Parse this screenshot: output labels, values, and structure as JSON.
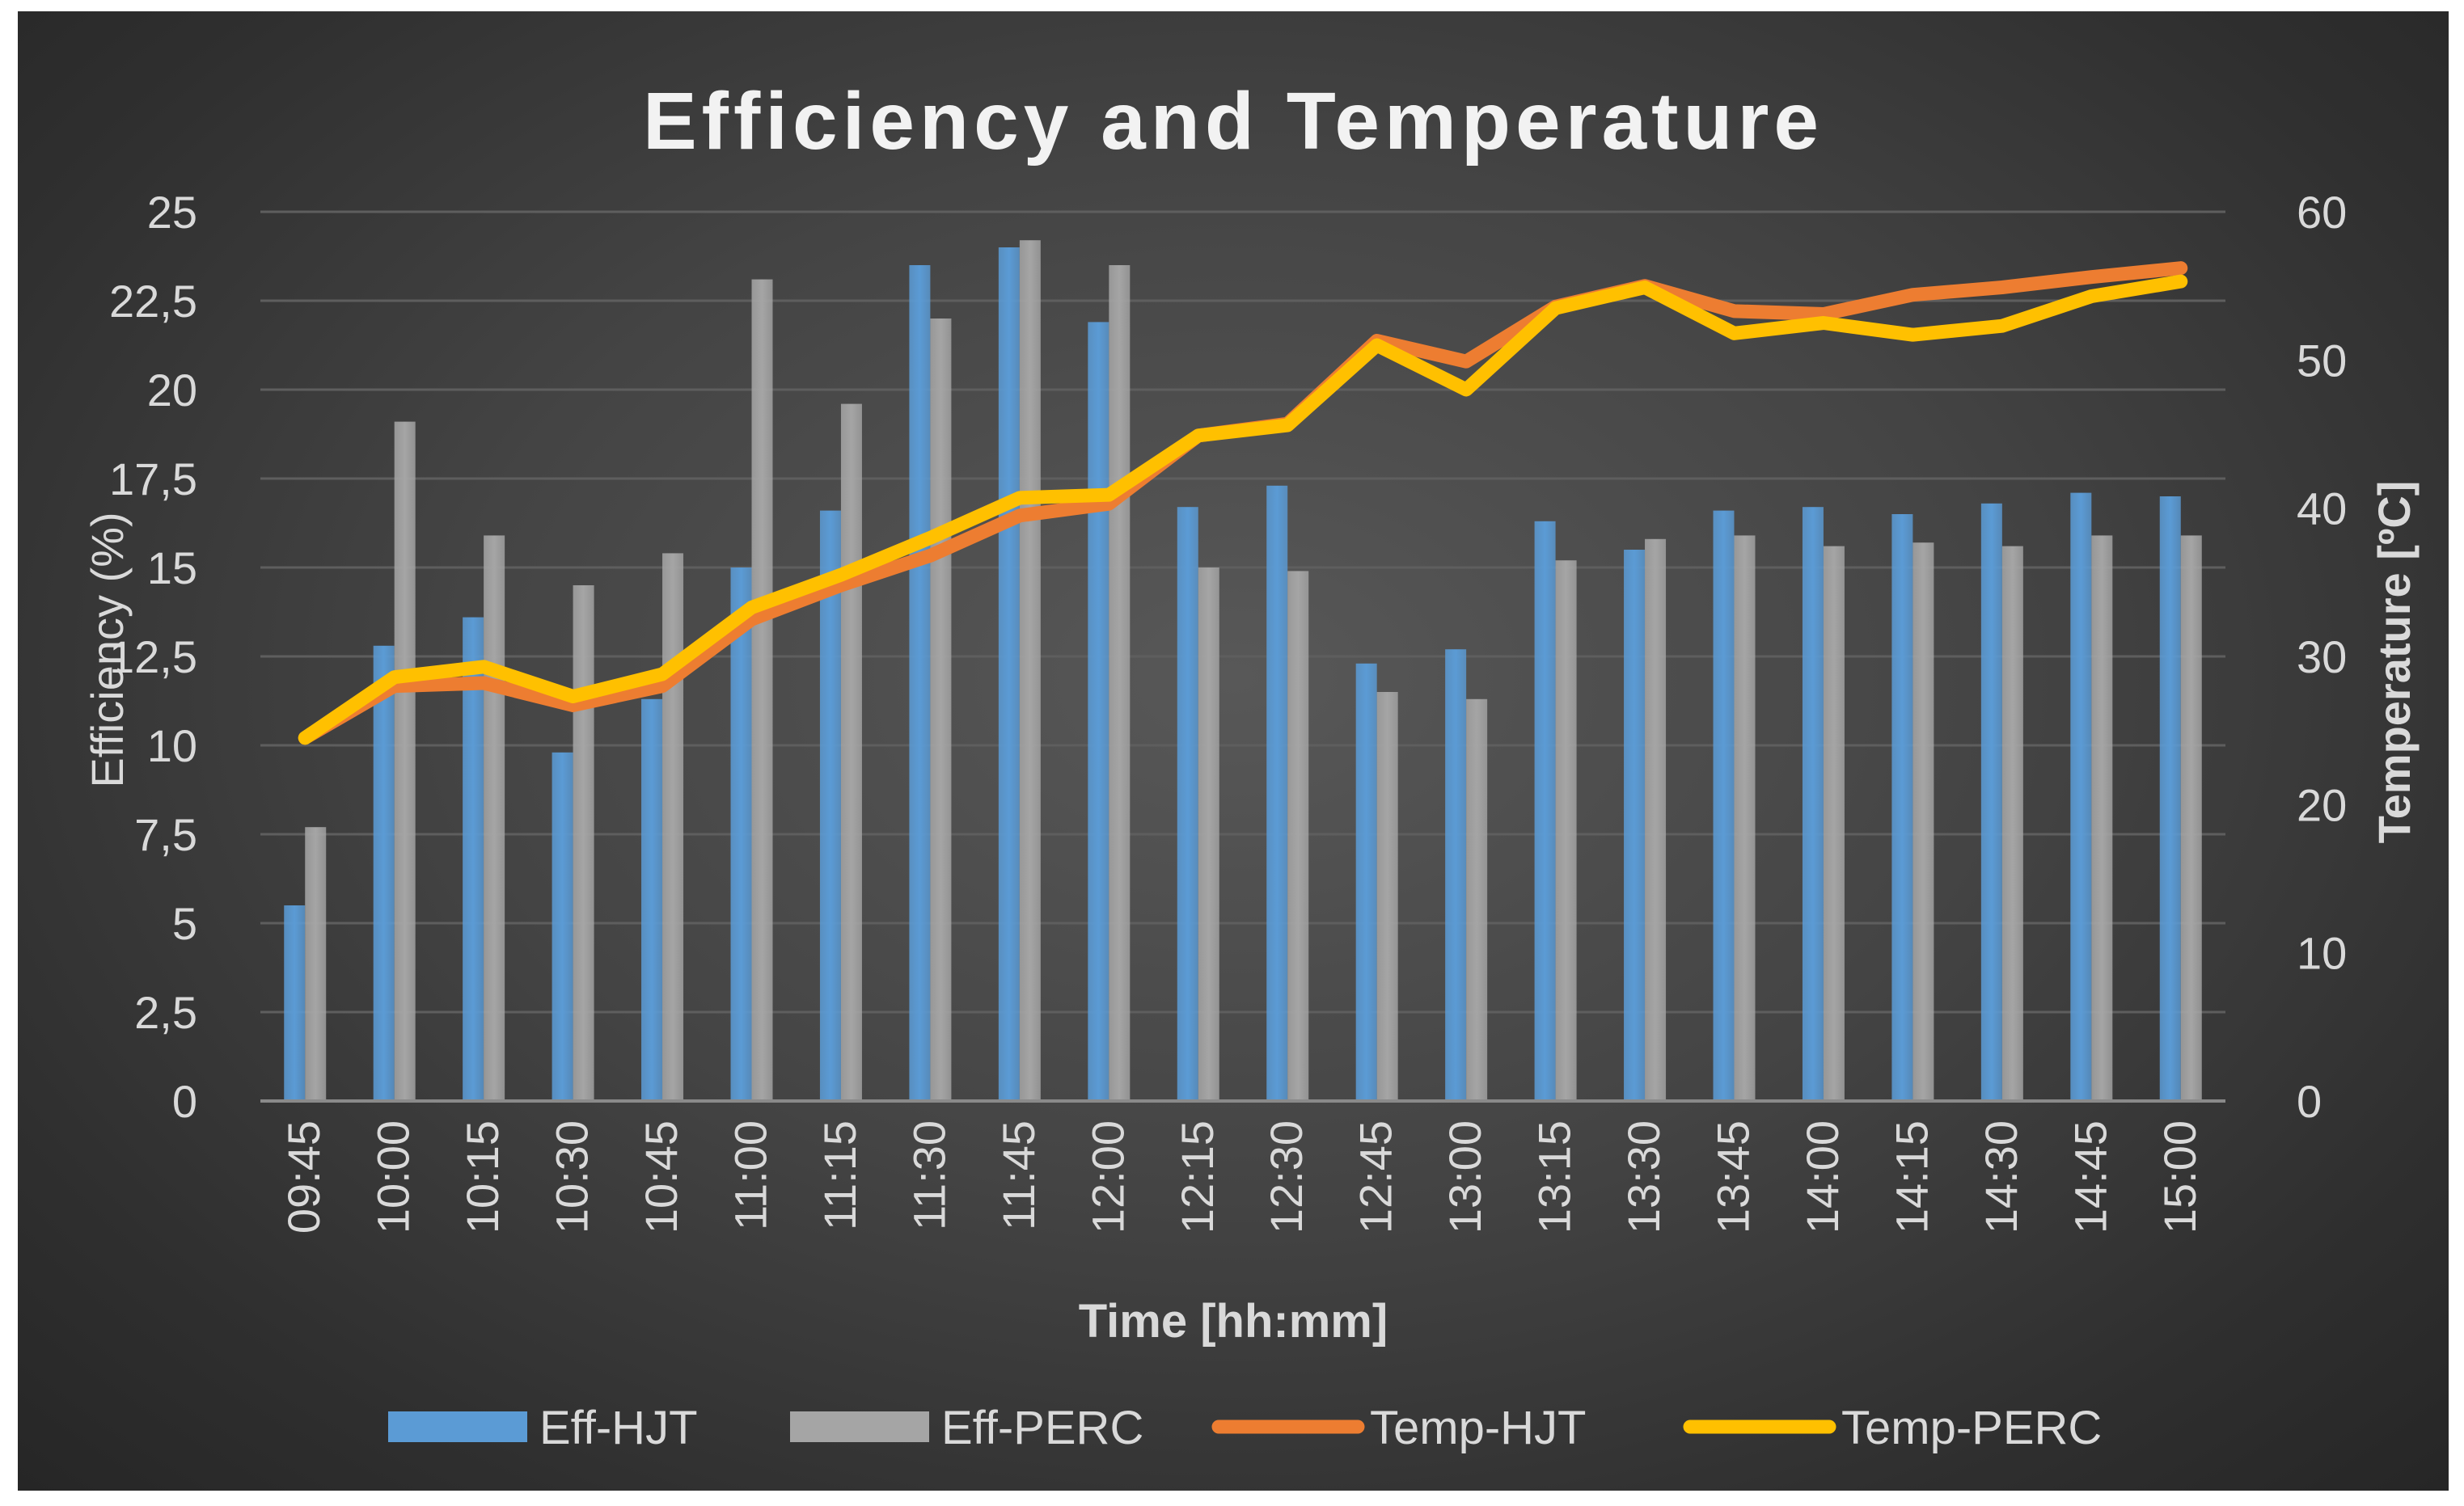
{
  "chart_data": {
    "type": "bar+line",
    "title": "Efficiency and Temperature",
    "xlabel": "Time [hh:mm]",
    "ylabel_left": "Efficiency (%)",
    "ylabel_right": "Temperature [ºC]",
    "ylim_left": [
      0,
      25
    ],
    "ylim_right": [
      0,
      60
    ],
    "y_ticks_left": [
      "0",
      "2,5",
      "5",
      "7,5",
      "10",
      "12,5",
      "15",
      "17,5",
      "20",
      "22,5",
      "25"
    ],
    "y_ticks_right": [
      "0",
      "10",
      "20",
      "30",
      "40",
      "50",
      "60"
    ],
    "grid": true,
    "legend_position": "bottom",
    "categories": [
      "09:45",
      "10:00",
      "10:15",
      "10:30",
      "10:45",
      "11:00",
      "11:15",
      "11:30",
      "11:45",
      "12:00",
      "12:15",
      "12:30",
      "12:45",
      "13:00",
      "13:15",
      "13:30",
      "13:45",
      "14:00",
      "14:15",
      "14:30",
      "14:45",
      "15:00"
    ],
    "bar_series": [
      {
        "name": "Eff-HJT",
        "axis": "left",
        "color": "#5b9bd5",
        "values": [
          5.5,
          12.8,
          13.6,
          9.8,
          11.3,
          15.0,
          16.6,
          23.5,
          24.0,
          21.9,
          16.7,
          17.3,
          12.3,
          12.7,
          16.3,
          15.5,
          16.6,
          16.7,
          16.5,
          16.8,
          17.1,
          17.0
        ]
      },
      {
        "name": "Eff-PERC",
        "axis": "left",
        "color": "#a5a5a5",
        "values": [
          7.7,
          19.1,
          15.9,
          14.5,
          15.4,
          23.1,
          19.6,
          22.0,
          24.2,
          23.5,
          15.0,
          14.9,
          11.5,
          11.3,
          15.2,
          15.8,
          15.9,
          15.6,
          15.7,
          15.6,
          15.9,
          15.9
        ]
      }
    ],
    "line_series": [
      {
        "name": "Temp-HJT",
        "axis": "right",
        "color": "#ed7d31",
        "values": [
          24.5,
          28.0,
          28.2,
          26.7,
          28.0,
          32.5,
          34.8,
          36.8,
          39.5,
          40.3,
          44.9,
          45.7,
          51.3,
          49.9,
          53.6,
          55.0,
          53.3,
          53.1,
          54.4,
          54.9,
          55.6,
          56.2
        ]
      },
      {
        "name": "Temp-PERC",
        "axis": "right",
        "color": "#ffc000",
        "values": [
          24.5,
          28.6,
          29.3,
          27.3,
          28.8,
          33.3,
          35.5,
          38.0,
          40.7,
          40.9,
          44.9,
          45.6,
          51.0,
          48.0,
          53.5,
          54.9,
          51.8,
          52.5,
          51.7,
          52.3,
          54.3,
          55.3
        ]
      }
    ]
  }
}
